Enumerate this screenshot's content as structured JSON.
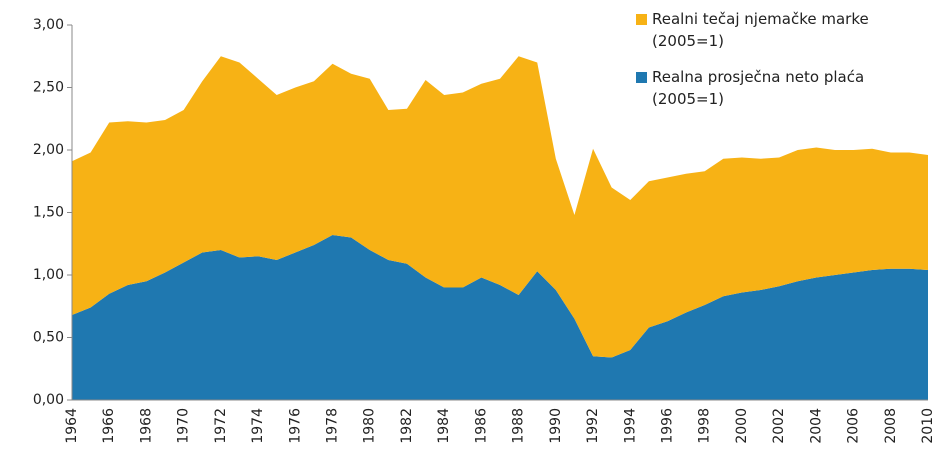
{
  "chart_data": {
    "type": "area",
    "stacked": true,
    "categories": [
      "1964",
      null,
      "1966",
      null,
      "1968",
      null,
      "1970",
      null,
      "1972",
      null,
      "1974",
      null,
      "1976",
      null,
      "1978",
      null,
      "1980",
      null,
      "1982",
      null,
      "1984",
      null,
      "1986",
      null,
      "1988",
      null,
      "1990",
      null,
      "1992",
      null,
      "1994",
      null,
      "1996",
      null,
      "1998",
      null,
      "2000",
      null,
      "2002",
      null,
      "2004",
      null,
      "2006",
      null,
      "2008",
      null,
      "2010"
    ],
    "series": [
      {
        "name": "Realna prosječna neto plaća (2005=1)",
        "color": "#1f78b0",
        "values": [
          0.68,
          0.74,
          0.85,
          0.92,
          0.95,
          1.02,
          1.1,
          1.18,
          1.2,
          1.14,
          1.15,
          1.12,
          1.18,
          1.24,
          1.32,
          1.3,
          1.2,
          1.12,
          1.09,
          0.98,
          0.9,
          0.9,
          0.98,
          0.92,
          0.84,
          1.03,
          0.88,
          0.65,
          0.35,
          0.34,
          0.4,
          0.58,
          0.63,
          0.7,
          0.76,
          0.83,
          0.86,
          0.88,
          0.91,
          0.95,
          0.98,
          1.0,
          1.02,
          1.04,
          1.05,
          1.05,
          1.04
        ]
      },
      {
        "name": "Realni tečaj njemačke marke (2005=1)",
        "color": "#f7b215",
        "values": [
          1.23,
          1.24,
          1.37,
          1.31,
          1.27,
          1.22,
          1.22,
          1.37,
          1.55,
          1.56,
          1.42,
          1.32,
          1.32,
          1.31,
          1.37,
          1.31,
          1.37,
          1.2,
          1.24,
          1.58,
          1.54,
          1.56,
          1.55,
          1.65,
          1.91,
          1.67,
          1.05,
          0.83,
          1.66,
          1.36,
          1.2,
          1.17,
          1.15,
          1.11,
          1.07,
          1.1,
          1.08,
          1.05,
          1.03,
          1.05,
          1.04,
          1.0,
          0.98,
          0.97,
          0.93,
          0.93,
          0.92
        ]
      }
    ],
    "ylim": [
      0,
      3
    ],
    "yticks": [
      {
        "value": 0,
        "label": "0,00"
      },
      {
        "value": 0.5,
        "label": "0,50"
      },
      {
        "value": 1,
        "label": "1,00"
      },
      {
        "value": 1.5,
        "label": "1,50"
      },
      {
        "value": 2,
        "label": "2,00"
      },
      {
        "value": 2.5,
        "label": "2,50"
      },
      {
        "value": 3,
        "label": "3,00"
      }
    ],
    "legend": "top-right"
  }
}
